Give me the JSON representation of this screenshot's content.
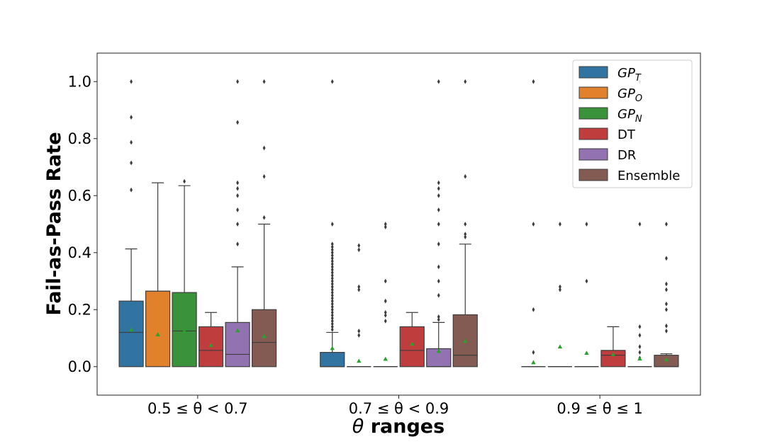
{
  "chart_data": {
    "type": "box",
    "xlabel_symbol": "θ",
    "xlabel_text": " ranges",
    "ylabel": "Fail-as-Pass Rate",
    "ylim": [
      -0.1,
      1.1
    ],
    "yticks": [
      "0.0",
      "0.2",
      "0.4",
      "0.6",
      "0.8",
      "1.0"
    ],
    "ytick_values": [
      0.0,
      0.2,
      0.4,
      0.6,
      0.8,
      1.0
    ],
    "grid": false,
    "legend_position": "top-right",
    "categories": [
      "0.5 ≤ θ < 0.7",
      "0.7 ≤ θ < 0.9",
      "0.9 ≤ θ ≤ 1"
    ],
    "series": [
      {
        "name": "GP",
        "sub": "T",
        "color": "#3274a1",
        "boxes": [
          {
            "q1": 0,
            "median": 0.12,
            "q3": 0.23,
            "whislo": 0,
            "whishi": 0.413,
            "mean": 0.13,
            "fliers": [
              0.62,
              0.715,
              0.787,
              0.875,
              1.0
            ]
          },
          {
            "q1": 0,
            "median": 0,
            "q3": 0.05,
            "whislo": 0,
            "whishi": 0.12,
            "mean": 0.065,
            "fliers": [
              0.13,
              0.14,
              0.15,
              0.16,
              0.17,
              0.18,
              0.19,
              0.2,
              0.21,
              0.22,
              0.23,
              0.24,
              0.25,
              0.26,
              0.27,
              0.28,
              0.29,
              0.3,
              0.31,
              0.32,
              0.33,
              0.34,
              0.35,
              0.36,
              0.37,
              0.38,
              0.39,
              0.4,
              0.41,
              0.42,
              0.43,
              0.5,
              1.0
            ]
          },
          {
            "q1": 0,
            "median": 0,
            "q3": 0,
            "whislo": 0,
            "whishi": 0,
            "mean": 0.015,
            "fliers": [
              0.05,
              0.2,
              0.5,
              1.0
            ]
          }
        ]
      },
      {
        "name": "GP",
        "sub": "O",
        "color": "#e1812c",
        "boxes": [
          {
            "q1": 0,
            "median": 0.265,
            "q3": 0.265,
            "whislo": 0,
            "whishi": 0.645,
            "mean": 0.113,
            "fliers": []
          },
          {
            "q1": 0,
            "median": 0,
            "q3": 0,
            "whislo": 0,
            "whishi": 0,
            "mean": 0.02,
            "fliers": [
              0.11,
              0.125,
              0.27,
              0.28,
              0.41,
              0.425
            ]
          },
          {
            "q1": 0,
            "median": 0,
            "q3": 0,
            "whislo": 0,
            "whishi": 0,
            "mean": 0.07,
            "fliers": [
              0.27,
              0.28,
              0.5
            ]
          }
        ]
      },
      {
        "name": "GP",
        "sub": "N",
        "color": "#3a923a",
        "boxes": [
          {
            "q1": 0,
            "median": 0.125,
            "q3": 0.26,
            "whislo": 0,
            "whishi": 0.635,
            "mean": 0.125,
            "fliers": [
              0.65
            ]
          },
          {
            "q1": 0,
            "median": 0,
            "q3": 0,
            "whislo": 0,
            "whishi": 0,
            "mean": 0.027,
            "fliers": [
              0.16,
              0.18,
              0.19,
              0.23,
              0.3,
              0.49,
              0.5
            ]
          },
          {
            "q1": 0,
            "median": 0,
            "q3": 0,
            "whislo": 0,
            "whishi": 0,
            "mean": 0.048,
            "fliers": [
              0.3,
              0.5
            ]
          }
        ]
      },
      {
        "name": "DT",
        "sub": "",
        "color": "#c03d3e",
        "boxes": [
          {
            "q1": 0,
            "median": 0.057,
            "q3": 0.14,
            "whislo": 0,
            "whishi": 0.19,
            "mean": 0.075,
            "fliers": []
          },
          {
            "q1": 0,
            "median": 0.057,
            "q3": 0.14,
            "whislo": 0,
            "whishi": 0.19,
            "mean": 0.08,
            "fliers": []
          },
          {
            "q1": 0,
            "median": 0.04,
            "q3": 0.057,
            "whislo": 0,
            "whishi": 0.14,
            "mean": 0.043,
            "fliers": []
          }
        ]
      },
      {
        "name": "DR",
        "sub": "",
        "color": "#9372b2",
        "boxes": [
          {
            "q1": 0,
            "median": 0.043,
            "q3": 0.155,
            "whislo": 0,
            "whishi": 0.35,
            "mean": 0.127,
            "fliers": [
              0.43,
              0.5,
              0.55,
              0.6,
              0.625,
              0.645,
              0.857,
              1.0
            ]
          },
          {
            "q1": 0,
            "median": 0,
            "q3": 0.063,
            "whislo": 0,
            "whishi": 0.155,
            "mean": 0.055,
            "fliers": [
              0.165,
              0.175,
              0.25,
              0.3,
              0.35,
              0.43,
              0.5,
              0.55,
              0.6,
              0.625,
              0.645,
              1.0
            ]
          },
          {
            "q1": 0,
            "median": 0,
            "q3": 0,
            "whislo": 0,
            "whishi": 0,
            "mean": 0.028,
            "fliers": [
              0.03,
              0.05,
              0.07,
              0.11,
              0.14,
              0.5,
              1.0
            ]
          }
        ]
      },
      {
        "name": "Ensemble",
        "sub": "",
        "color": "#845b53",
        "boxes": [
          {
            "q1": 0,
            "median": 0.085,
            "q3": 0.2,
            "whislo": 0,
            "whishi": 0.5,
            "mean": 0.107,
            "fliers": [
              0.523,
              0.667,
              0.767,
              1.0
            ]
          },
          {
            "q1": 0,
            "median": 0.04,
            "q3": 0.182,
            "whislo": 0,
            "whishi": 0.43,
            "mean": 0.09,
            "fliers": [
              0.455,
              0.465,
              0.5,
              0.667,
              1.0
            ]
          },
          {
            "q1": 0,
            "median": 0,
            "q3": 0.04,
            "whislo": 0,
            "whishi": 0.045,
            "mean": 0.025,
            "fliers": [
              0.125,
              0.143,
              0.2,
              0.22,
              0.27,
              0.29,
              0.38,
              0.5
            ]
          }
        ]
      }
    ]
  }
}
